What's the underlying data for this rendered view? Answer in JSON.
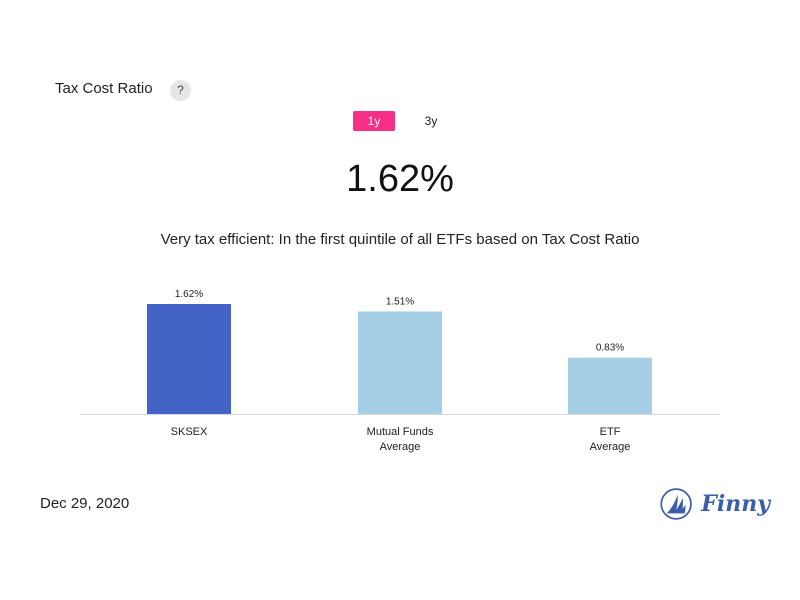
{
  "header": {
    "title": "Tax Cost Ratio",
    "help_label": "?"
  },
  "period_tabs": [
    {
      "label": "1y",
      "active": true
    },
    {
      "label": "3y",
      "active": false
    }
  ],
  "main_value": "1.62%",
  "description": "Very tax efficient: In the first quintile of all ETFs based on Tax Cost Ratio",
  "date": "Dec 29, 2020",
  "brand": {
    "name": "Finny",
    "color": "#3a5ea8"
  },
  "colors": {
    "accent": "#f72f86",
    "bar_primary": "#4363c6",
    "bar_secondary": "#a6cee5",
    "axis": "#d9d9d9"
  },
  "chart_data": {
    "type": "bar",
    "categories": [
      [
        "SKSEX"
      ],
      [
        "Mutual Funds",
        "Average"
      ],
      [
        "ETF",
        "Average"
      ]
    ],
    "values": [
      1.62,
      1.51,
      0.83
    ],
    "value_labels": [
      "1.62%",
      "1.51%",
      "0.83%"
    ],
    "bar_colors": [
      "#4363c6",
      "#a6cee5",
      "#a6cee5"
    ],
    "ylim": [
      0,
      1.62
    ],
    "title": "",
    "xlabel": "",
    "ylabel": "",
    "grid": false,
    "legend": "none"
  }
}
